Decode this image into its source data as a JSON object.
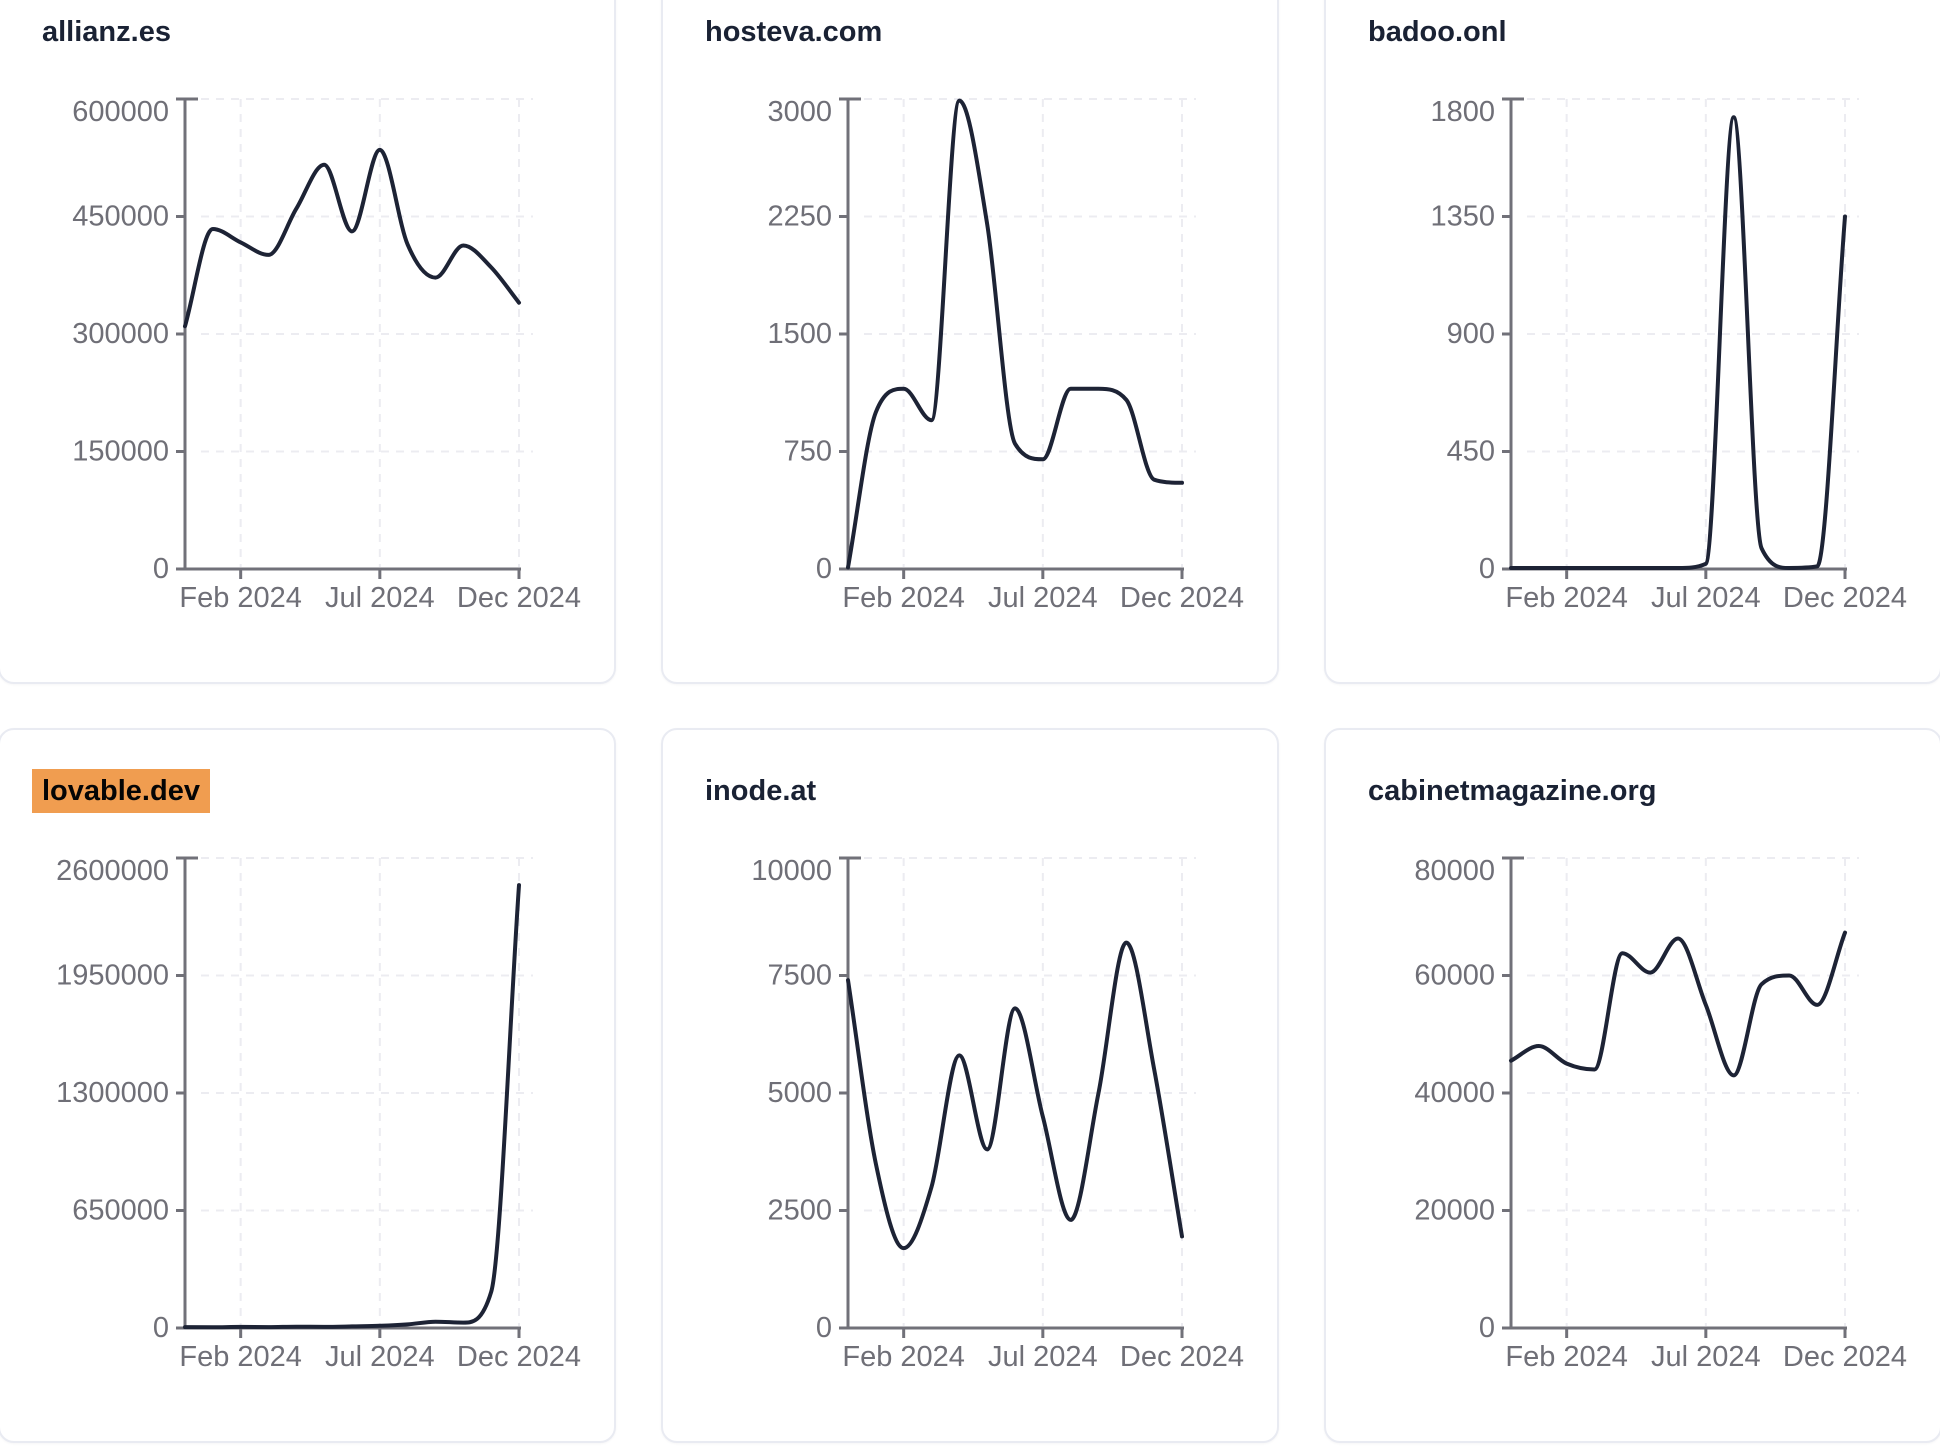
{
  "style": {
    "line_color": "#1d2335",
    "title_color": "#1a2234",
    "highlight_color": "#f09d50",
    "highlight_text_color": "#050505",
    "axis_color": "#717179",
    "tick_label_color": "#6f6f77",
    "grid_color": "#ececf1",
    "card_border_color": "#e9ebf2",
    "card_background": "#ffffff"
  },
  "chart_data": [
    {
      "type": "line",
      "title": "allianz.es",
      "highlighted": false,
      "x_tick_labels": [
        "Feb 2024",
        "Jul 2024",
        "Dec 2024"
      ],
      "x_tick_indices": [
        2,
        7,
        12
      ],
      "y_ticks": [
        0,
        150000,
        300000,
        450000,
        600000
      ],
      "y_max": 600000,
      "values": [
        310000,
        434000,
        417000,
        401000,
        460000,
        516000,
        431000,
        535000,
        414000,
        372000,
        413000,
        385000,
        340000
      ],
      "grid": true,
      "legend": false
    },
    {
      "type": "line",
      "title": "hosteva.com",
      "highlighted": false,
      "x_tick_labels": [
        "Feb 2024",
        "Jul 2024",
        "Dec 2024"
      ],
      "x_tick_indices": [
        2,
        7,
        12
      ],
      "y_ticks": [
        0,
        750,
        1500,
        2250,
        3000
      ],
      "y_max": 3000,
      "values": [
        10,
        1000,
        1150,
        950,
        2990,
        2200,
        800,
        700,
        1150,
        1150,
        1080,
        570,
        550
      ],
      "grid": true,
      "legend": false
    },
    {
      "type": "line",
      "title": "badoo.onl",
      "highlighted": false,
      "x_tick_labels": [
        "Feb 2024",
        "Jul 2024",
        "Dec 2024"
      ],
      "x_tick_indices": [
        2,
        7,
        12
      ],
      "y_ticks": [
        0,
        450,
        900,
        1350,
        1800
      ],
      "y_max": 1800,
      "values": [
        4,
        4,
        4,
        4,
        4,
        4,
        4,
        20,
        1730,
        80,
        4,
        10,
        1350
      ],
      "grid": true,
      "legend": false
    },
    {
      "type": "line",
      "title": "lovable.dev",
      "highlighted": true,
      "x_tick_labels": [
        "Feb 2024",
        "Jul 2024",
        "Dec 2024"
      ],
      "x_tick_indices": [
        2,
        7,
        12
      ],
      "y_ticks": [
        0,
        650000,
        1300000,
        1950000,
        2600000
      ],
      "y_max": 2600000,
      "values": [
        5000,
        4000,
        6000,
        5000,
        7000,
        6000,
        9000,
        12000,
        20000,
        35000,
        30000,
        200000,
        2450000
      ],
      "grid": true,
      "legend": false
    },
    {
      "type": "line",
      "title": "inode.at",
      "highlighted": false,
      "x_tick_labels": [
        "Feb 2024",
        "Jul 2024",
        "Dec 2024"
      ],
      "x_tick_indices": [
        2,
        7,
        12
      ],
      "y_ticks": [
        0,
        2500,
        5000,
        7500,
        10000
      ],
      "y_max": 10000,
      "values": [
        7400,
        3500,
        1700,
        3000,
        5800,
        3800,
        6800,
        4500,
        2300,
        5000,
        8200,
        5500,
        1950
      ],
      "grid": true,
      "legend": false
    },
    {
      "type": "line",
      "title": "cabinetmagazine.org",
      "highlighted": false,
      "x_tick_labels": [
        "Feb 2024",
        "Jul 2024",
        "Dec 2024"
      ],
      "x_tick_indices": [
        2,
        7,
        12
      ],
      "y_ticks": [
        0,
        20000,
        40000,
        60000,
        80000
      ],
      "y_max": 80000,
      "values": [
        45500,
        48000,
        45000,
        44000,
        63800,
        60500,
        66300,
        55000,
        43000,
        58500,
        60000,
        55000,
        67300
      ],
      "grid": true,
      "legend": false
    }
  ]
}
